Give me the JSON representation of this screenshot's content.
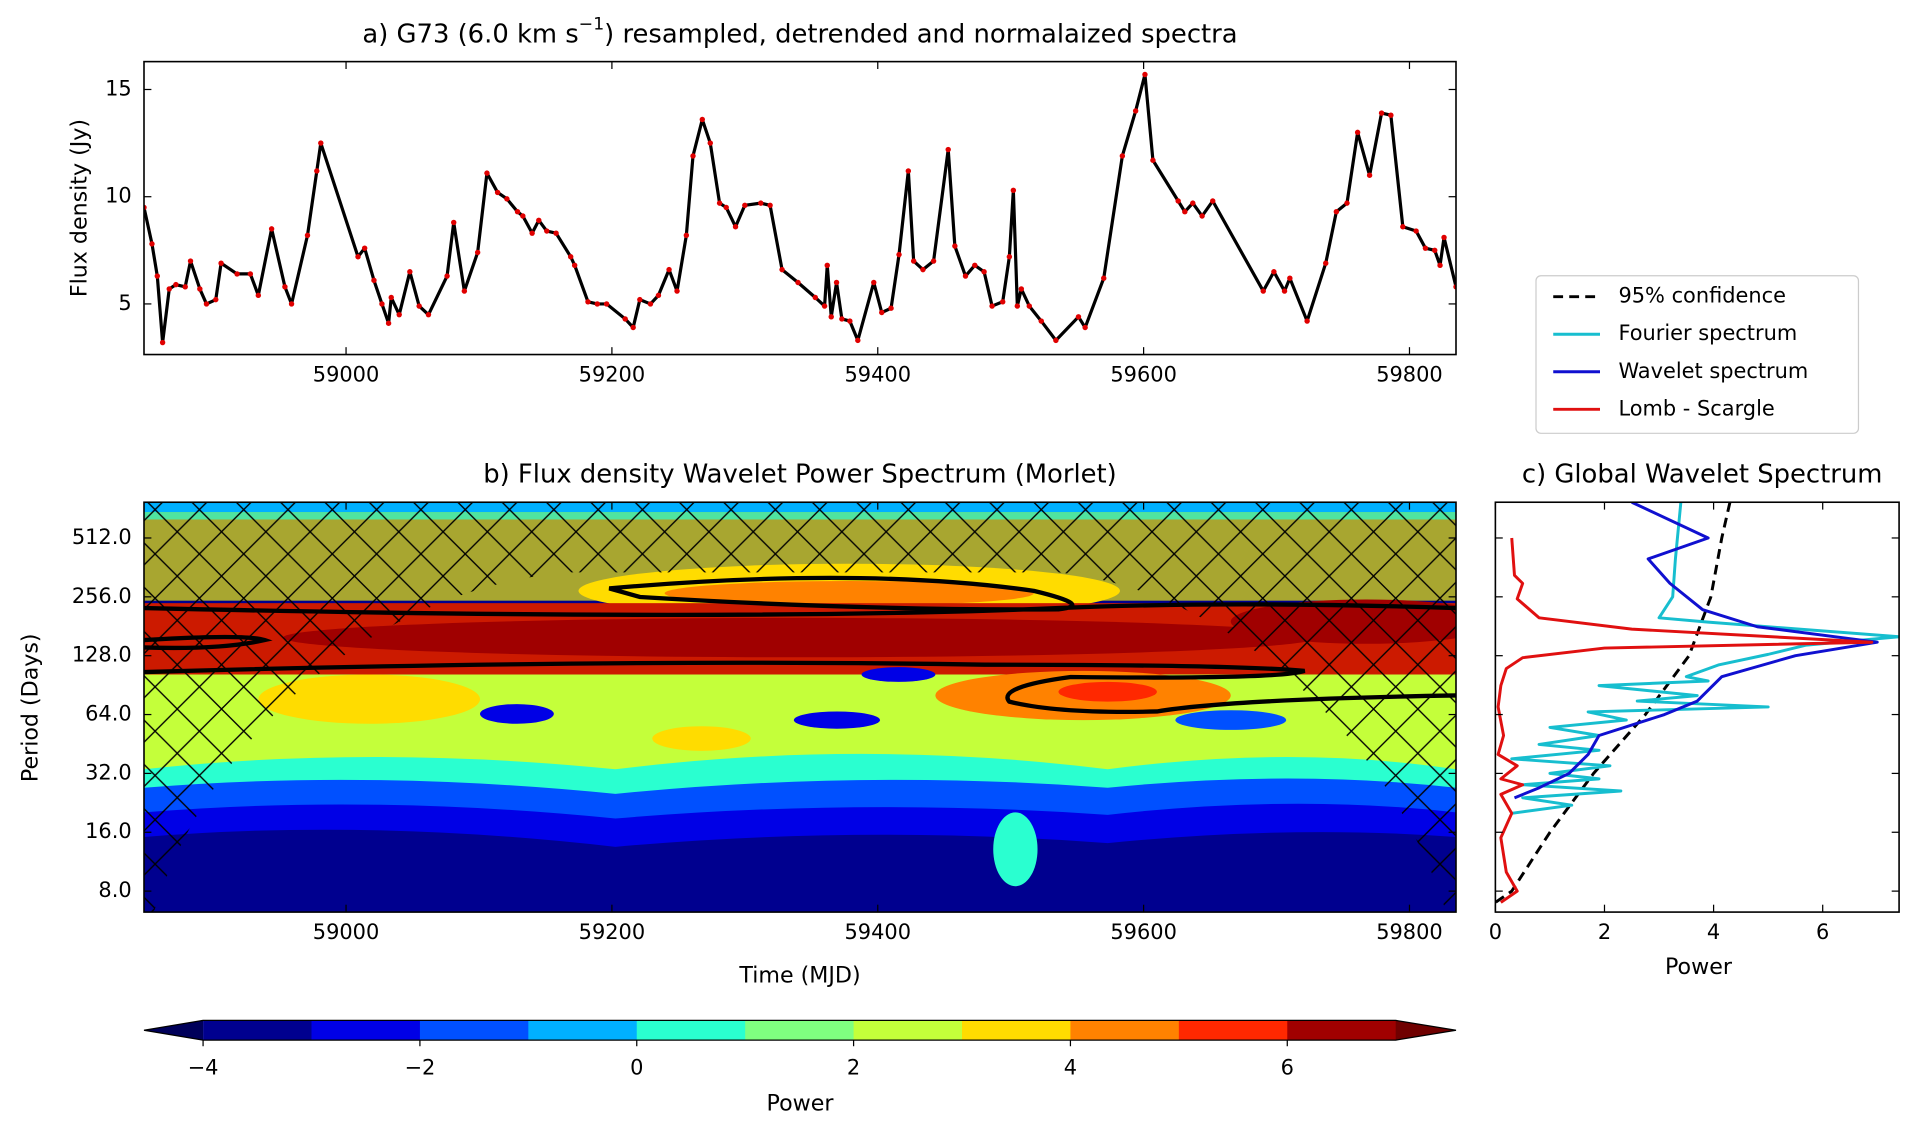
{
  "chart_data": [
    {
      "type": "line",
      "title": [
        "a) G73 (6.0 km s",
        "−1",
        ") resampled, detrended and normalaized spectra"
      ],
      "ylabel": "Flux density (Jy)",
      "color": "#000000",
      "marker_color": "#e00000",
      "xlim": [
        58848,
        59835
      ],
      "xticks": [
        59000,
        59200,
        59400,
        59600,
        59800
      ],
      "ylim": [
        2.64,
        16.3
      ],
      "yticks": [
        5,
        10,
        15
      ],
      "x": [
        58848,
        58854,
        58858,
        58862,
        58867,
        58872,
        58879,
        58883,
        58890,
        58895,
        58902,
        58906,
        58918,
        58928,
        58934,
        58944,
        58954,
        58959,
        58971,
        58978,
        58981,
        59009,
        59014,
        59021,
        59027,
        59032,
        59034,
        59040,
        59048,
        59055,
        59062,
        59076,
        59081,
        59089,
        59099,
        59106,
        59114,
        59121,
        59129,
        59133,
        59140,
        59145,
        59151,
        59158,
        59169,
        59172,
        59182,
        59189,
        59196,
        59210,
        59216,
        59221,
        59229,
        59235,
        59243,
        59249,
        59256,
        59261,
        59268,
        59274,
        59281,
        59286,
        59293,
        59300,
        59312,
        59319,
        59328,
        59340,
        59353,
        59360,
        59362,
        59365,
        59369,
        59373,
        59379,
        59385,
        59397,
        59403,
        59410,
        59416,
        59423,
        59427,
        59434,
        59442,
        59453,
        59458,
        59466,
        59473,
        59480,
        59486,
        59494,
        59499,
        59502,
        59505,
        59508,
        59514,
        59523,
        59534,
        59551,
        59556,
        59570,
        59584,
        59594,
        59601,
        59607,
        59626,
        59631,
        59637,
        59644,
        59652,
        59690,
        59698,
        59706,
        59710,
        59723,
        59737,
        59745,
        59753,
        59761,
        59770,
        59779,
        59786,
        59795,
        59805,
        59812,
        59819,
        59823,
        59826,
        59835
      ],
      "values": [
        9.5,
        7.8,
        6.3,
        3.2,
        5.7,
        5.9,
        5.8,
        7.0,
        5.7,
        5.0,
        5.2,
        6.9,
        6.4,
        6.4,
        5.4,
        8.5,
        5.8,
        5.0,
        8.2,
        11.2,
        12.5,
        7.2,
        7.6,
        6.1,
        5.0,
        4.1,
        5.3,
        4.5,
        6.5,
        4.9,
        4.5,
        6.3,
        8.8,
        5.6,
        7.4,
        11.1,
        10.2,
        9.9,
        9.3,
        9.1,
        8.3,
        8.9,
        8.4,
        8.3,
        7.2,
        6.8,
        5.1,
        5.0,
        5.0,
        4.3,
        3.9,
        5.2,
        5.0,
        5.4,
        6.6,
        5.6,
        8.2,
        11.9,
        13.6,
        12.5,
        9.7,
        9.5,
        8.6,
        9.6,
        9.7,
        9.6,
        6.6,
        6.0,
        5.3,
        4.9,
        6.8,
        4.4,
        6.0,
        4.3,
        4.2,
        3.3,
        6.0,
        4.6,
        4.8,
        7.3,
        11.2,
        7.0,
        6.6,
        7.0,
        12.2,
        7.7,
        6.3,
        6.8,
        6.5,
        4.9,
        5.1,
        7.2,
        10.3,
        4.9,
        5.7,
        4.9,
        4.2,
        3.3,
        4.4,
        3.9,
        6.2,
        11.9,
        14.0,
        15.7,
        11.7,
        9.8,
        9.3,
        9.7,
        9.1,
        9.8,
        5.6,
        6.5,
        5.6,
        6.2,
        4.2,
        6.9,
        9.3,
        9.7,
        13.0,
        11.0,
        13.9,
        13.8,
        8.6,
        8.4,
        7.6,
        7.5,
        6.8,
        8.1,
        5.8
      ]
    },
    {
      "type": "contour",
      "title": "b) Flux density Wavelet Power Spectrum (Morlet)",
      "xlabel": "Time (MJD)",
      "ylabel": "Period (Days)",
      "xlim": [
        58848,
        59835
      ],
      "xticks": [
        59000,
        59200,
        59400,
        59600,
        59800
      ],
      "ylim": [
        6.25,
        780
      ],
      "log_base": 2,
      "yticks": [
        {
          "value": 8,
          "label": "8.0"
        },
        {
          "value": 16,
          "label": "16.0"
        },
        {
          "value": 32,
          "label": "32.0"
        },
        {
          "value": 64,
          "label": "64.0"
        },
        {
          "value": 128,
          "label": "128.0"
        },
        {
          "value": 256,
          "label": "256.0"
        },
        {
          "value": 512,
          "label": "512.0"
        }
      ],
      "colorbar": {
        "label": "Power",
        "levels": [
          -4,
          -3,
          -2,
          -1,
          0,
          1,
          2,
          3,
          4,
          5,
          6,
          7
        ],
        "colors": [
          "#00008f",
          "#0000e6",
          "#0050ff",
          "#00b0ff",
          "#2affd0",
          "#7fff80",
          "#c4ff3a",
          "#ffdc00",
          "#ff8200",
          "#ff2800",
          "#a00000"
        ],
        "under_color": "#00005a",
        "over_color": "#700000",
        "ticks": [
          {
            "value": -4,
            "label": "−4"
          },
          {
            "value": -2,
            "label": "−2"
          },
          0,
          2,
          4,
          6
        ]
      }
    },
    {
      "type": "spectrum",
      "title": "c) Global Wavelet Spectrum",
      "xlabel": "Power",
      "xlim": [
        0,
        7.4
      ],
      "xticks": [
        0,
        2,
        4,
        6
      ],
      "ylim": [
        6.25,
        780
      ],
      "log_base": 2,
      "yticks": [
        8,
        16,
        32,
        64,
        128,
        256,
        512
      ],
      "series": [
        {
          "name": "95% confidence",
          "color": "#000000",
          "linestyle": "dashed",
          "x": [
            4.3,
            4.15,
            3.95,
            3.55,
            2.75,
            1.8,
            1.0,
            0.3,
            0
          ],
          "values": [
            780,
            512,
            256,
            128,
            64,
            32,
            16,
            8,
            7
          ]
        },
        {
          "name": "Fourier spectrum",
          "color": "#17becf",
          "linestyle": "solid",
          "x": [
            3.4,
            3.3,
            3.25,
            3.0,
            3.9,
            7.4,
            5.7,
            5.0,
            4.1,
            3.5,
            3.9,
            1.9,
            3.7,
            2.6,
            5.0,
            1.7,
            2.4,
            1.0,
            1.9,
            0.8,
            1.9,
            0.3,
            2.1,
            1.0,
            1.9,
            0.5,
            2.3,
            0.5,
            1.4,
            0.3
          ],
          "values": [
            780,
            400,
            256,
            200,
            190,
            160,
            145,
            130,
            115,
            100,
            95,
            90,
            80,
            75,
            70,
            66,
            60,
            55,
            50,
            45,
            42,
            38,
            35,
            32,
            30,
            28,
            26,
            24,
            22,
            20
          ]
        },
        {
          "name": "Wavelet spectrum",
          "color": "#1010d0",
          "linestyle": "solid",
          "x": [
            2.5,
            3.9,
            2.8,
            3.2,
            3.8,
            4.8,
            7.0,
            5.5,
            4.15,
            3.7,
            3.1,
            1.9,
            1.7,
            1.35,
            0.8,
            0.35
          ],
          "values": [
            780,
            512,
            400,
            300,
            220,
            180,
            150,
            128,
            100,
            75,
            64,
            50,
            40,
            32,
            27,
            24
          ]
        },
        {
          "name": "Lomb - Scargle",
          "color": "#e01010",
          "linestyle": "solid",
          "x": [
            0.3,
            0.35,
            0.5,
            0.4,
            0.8,
            2.5,
            6.9,
            2.0,
            0.5,
            0.2,
            0.1,
            0.05,
            0.15,
            0.05,
            0.4,
            0.1,
            0.5,
            0.1,
            0.3,
            0.1,
            0.2,
            0.4,
            0.1
          ],
          "values": [
            512,
            330,
            300,
            250,
            200,
            175,
            150,
            140,
            125,
            110,
            90,
            70,
            50,
            40,
            35,
            30,
            28,
            25,
            20,
            15,
            10,
            8,
            7
          ]
        }
      ]
    }
  ]
}
